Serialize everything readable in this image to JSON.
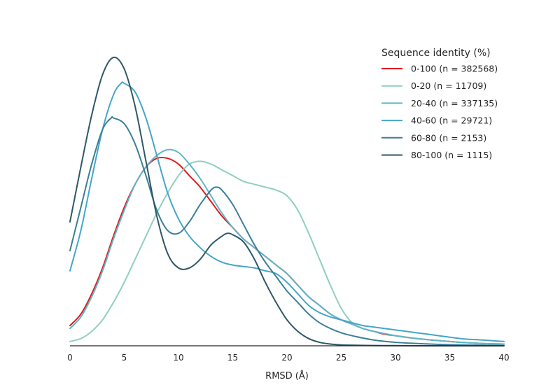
{
  "chart_data": {
    "type": "line",
    "xlabel": "RMSD (Å)",
    "ylabel": "",
    "xlim": [
      0,
      40
    ],
    "ylim": [
      0,
      1
    ],
    "x_ticks": [
      "0",
      "5",
      "10",
      "15",
      "20",
      "25",
      "30",
      "35",
      "40"
    ],
    "y_ticks_visible": false,
    "grid": false,
    "legend": {
      "title": "Sequence identity (%)",
      "placement": "top-right"
    },
    "series": [
      {
        "name": "0-100",
        "count_label": "(n = 382568)",
        "color": "#e31a1c",
        "points": [
          [
            0,
            0.07
          ],
          [
            1,
            0.11
          ],
          [
            2,
            0.18
          ],
          [
            3,
            0.27
          ],
          [
            4,
            0.38
          ],
          [
            5,
            0.48
          ],
          [
            6,
            0.56
          ],
          [
            7,
            0.62
          ],
          [
            8,
            0.65
          ],
          [
            9,
            0.65
          ],
          [
            10,
            0.63
          ],
          [
            11,
            0.59
          ],
          [
            12,
            0.55
          ],
          [
            13,
            0.5
          ],
          [
            14,
            0.45
          ],
          [
            15,
            0.41
          ],
          [
            16,
            0.37
          ],
          [
            17,
            0.34
          ],
          [
            18,
            0.31
          ],
          [
            19,
            0.28
          ],
          [
            20,
            0.25
          ],
          [
            21,
            0.21
          ],
          [
            22,
            0.17
          ],
          [
            23,
            0.14
          ],
          [
            24,
            0.11
          ],
          [
            25,
            0.09
          ],
          [
            26,
            0.075
          ],
          [
            27,
            0.06
          ],
          [
            28,
            0.05
          ],
          [
            29,
            0.04
          ],
          [
            30,
            0.035
          ],
          [
            32,
            0.025
          ],
          [
            34,
            0.018
          ],
          [
            36,
            0.012
          ],
          [
            38,
            0.008
          ],
          [
            40,
            0.006
          ]
        ]
      },
      {
        "name": "0-20",
        "count_label": "(n = 11709)",
        "color": "#8ecfc1",
        "points": [
          [
            0,
            0.015
          ],
          [
            1,
            0.025
          ],
          [
            2,
            0.05
          ],
          [
            3,
            0.09
          ],
          [
            4,
            0.15
          ],
          [
            5,
            0.22
          ],
          [
            6,
            0.3
          ],
          [
            7,
            0.38
          ],
          [
            8,
            0.46
          ],
          [
            9,
            0.53
          ],
          [
            10,
            0.59
          ],
          [
            11,
            0.63
          ],
          [
            12,
            0.64
          ],
          [
            13,
            0.63
          ],
          [
            14,
            0.61
          ],
          [
            15,
            0.59
          ],
          [
            16,
            0.57
          ],
          [
            17,
            0.56
          ],
          [
            18,
            0.55
          ],
          [
            19,
            0.54
          ],
          [
            20,
            0.52
          ],
          [
            21,
            0.47
          ],
          [
            22,
            0.39
          ],
          [
            23,
            0.3
          ],
          [
            24,
            0.21
          ],
          [
            25,
            0.13
          ],
          [
            26,
            0.08
          ],
          [
            27,
            0.06
          ],
          [
            28,
            0.05
          ],
          [
            30,
            0.035
          ],
          [
            32,
            0.025
          ],
          [
            34,
            0.018
          ],
          [
            36,
            0.012
          ],
          [
            38,
            0.008
          ],
          [
            40,
            0.006
          ]
        ]
      },
      {
        "name": "20-40",
        "count_label": "(n = 337135)",
        "color": "#5fb6c9",
        "points": [
          [
            0,
            0.06
          ],
          [
            1,
            0.1
          ],
          [
            2,
            0.17
          ],
          [
            3,
            0.26
          ],
          [
            4,
            0.37
          ],
          [
            5,
            0.47
          ],
          [
            6,
            0.56
          ],
          [
            7,
            0.62
          ],
          [
            8,
            0.66
          ],
          [
            9,
            0.68
          ],
          [
            10,
            0.67
          ],
          [
            11,
            0.63
          ],
          [
            12,
            0.58
          ],
          [
            13,
            0.52
          ],
          [
            14,
            0.46
          ],
          [
            15,
            0.41
          ],
          [
            16,
            0.37
          ],
          [
            17,
            0.34
          ],
          [
            18,
            0.31
          ],
          [
            19,
            0.28
          ],
          [
            20,
            0.25
          ],
          [
            21,
            0.21
          ],
          [
            22,
            0.17
          ],
          [
            23,
            0.14
          ],
          [
            24,
            0.11
          ],
          [
            25,
            0.09
          ],
          [
            26,
            0.075
          ],
          [
            27,
            0.06
          ],
          [
            28,
            0.05
          ],
          [
            30,
            0.035
          ],
          [
            32,
            0.025
          ],
          [
            34,
            0.018
          ],
          [
            36,
            0.012
          ],
          [
            38,
            0.008
          ],
          [
            40,
            0.006
          ]
        ]
      },
      {
        "name": "40-60",
        "count_label": "(n = 29721)",
        "color": "#45a5c8",
        "points": [
          [
            0,
            0.26
          ],
          [
            1,
            0.4
          ],
          [
            2,
            0.58
          ],
          [
            3,
            0.75
          ],
          [
            4,
            0.87
          ],
          [
            4.7,
            0.91
          ],
          [
            5,
            0.91
          ],
          [
            6,
            0.88
          ],
          [
            7,
            0.79
          ],
          [
            8,
            0.66
          ],
          [
            9,
            0.53
          ],
          [
            10,
            0.44
          ],
          [
            11,
            0.38
          ],
          [
            12,
            0.34
          ],
          [
            13,
            0.31
          ],
          [
            14,
            0.29
          ],
          [
            15,
            0.28
          ],
          [
            16,
            0.275
          ],
          [
            17,
            0.27
          ],
          [
            18,
            0.26
          ],
          [
            19,
            0.25
          ],
          [
            20,
            0.22
          ],
          [
            21,
            0.18
          ],
          [
            22,
            0.14
          ],
          [
            23,
            0.115
          ],
          [
            24,
            0.1
          ],
          [
            25,
            0.09
          ],
          [
            26,
            0.08
          ],
          [
            27,
            0.07
          ],
          [
            28,
            0.065
          ],
          [
            30,
            0.055
          ],
          [
            32,
            0.045
          ],
          [
            34,
            0.035
          ],
          [
            36,
            0.025
          ],
          [
            38,
            0.02
          ],
          [
            40,
            0.015
          ]
        ]
      },
      {
        "name": "60-80",
        "count_label": "(n = 2153)",
        "color": "#3a7f96",
        "points": [
          [
            0,
            0.33
          ],
          [
            1,
            0.48
          ],
          [
            2,
            0.63
          ],
          [
            3,
            0.75
          ],
          [
            3.8,
            0.79
          ],
          [
            4,
            0.79
          ],
          [
            5,
            0.77
          ],
          [
            6,
            0.7
          ],
          [
            7,
            0.59
          ],
          [
            8,
            0.47
          ],
          [
            9,
            0.4
          ],
          [
            10,
            0.39
          ],
          [
            11,
            0.43
          ],
          [
            12,
            0.49
          ],
          [
            13,
            0.54
          ],
          [
            13.5,
            0.55
          ],
          [
            14,
            0.54
          ],
          [
            15,
            0.49
          ],
          [
            16,
            0.42
          ],
          [
            17,
            0.35
          ],
          [
            18,
            0.29
          ],
          [
            19,
            0.24
          ],
          [
            20,
            0.19
          ],
          [
            21,
            0.15
          ],
          [
            22,
            0.11
          ],
          [
            23,
            0.08
          ],
          [
            24,
            0.06
          ],
          [
            25,
            0.045
          ],
          [
            26,
            0.035
          ],
          [
            28,
            0.02
          ],
          [
            30,
            0.012
          ],
          [
            32,
            0.008
          ],
          [
            34,
            0.005
          ],
          [
            36,
            0.003
          ],
          [
            38,
            0.002
          ],
          [
            40,
            0.001
          ]
        ]
      },
      {
        "name": "80-100",
        "count_label": "(n = 1115)",
        "color": "#2f5766",
        "points": [
          [
            0,
            0.43
          ],
          [
            1,
            0.62
          ],
          [
            2,
            0.8
          ],
          [
            3,
            0.94
          ],
          [
            4,
            1.0
          ],
          [
            5,
            0.96
          ],
          [
            6,
            0.83
          ],
          [
            7,
            0.64
          ],
          [
            8,
            0.45
          ],
          [
            9,
            0.32
          ],
          [
            10,
            0.27
          ],
          [
            11,
            0.27
          ],
          [
            12,
            0.3
          ],
          [
            13,
            0.35
          ],
          [
            14,
            0.38
          ],
          [
            14.5,
            0.39
          ],
          [
            15,
            0.385
          ],
          [
            16,
            0.36
          ],
          [
            17,
            0.3
          ],
          [
            18,
            0.22
          ],
          [
            19,
            0.15
          ],
          [
            20,
            0.09
          ],
          [
            21,
            0.05
          ],
          [
            22,
            0.025
          ],
          [
            23,
            0.012
          ],
          [
            24,
            0.006
          ],
          [
            25,
            0.003
          ],
          [
            26,
            0.002
          ],
          [
            28,
            0.001
          ],
          [
            30,
            0.0005
          ],
          [
            32,
            0
          ],
          [
            34,
            0
          ],
          [
            36,
            0
          ],
          [
            38,
            0
          ],
          [
            40,
            0
          ]
        ]
      }
    ]
  }
}
